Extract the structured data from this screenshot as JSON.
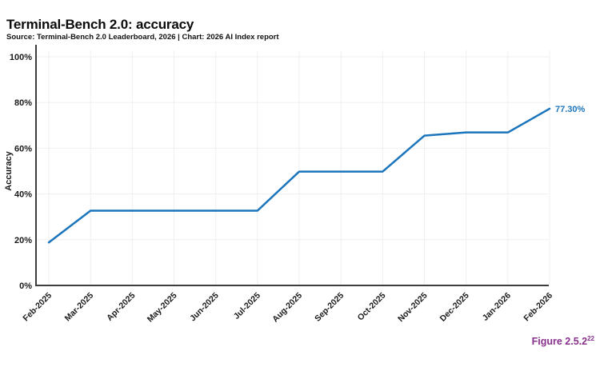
{
  "header": {
    "title": "Terminal-Bench 2.0: accuracy",
    "source_line": "Source: Terminal-Bench 2.0 Leaderboard, 2026 | Chart: 2026 AI Index report"
  },
  "chart_data": {
    "type": "line",
    "title": "Terminal-Bench 2.0: accuracy",
    "categories": [
      "Feb-2025",
      "Mar-2025",
      "Apr-2025",
      "May-2025",
      "Jun-2025",
      "Jul-2025",
      "Aug-2025",
      "Sep-2025",
      "Oct-2025",
      "Nov-2025",
      "Dec-2025",
      "Jan-2026",
      "Feb-2026"
    ],
    "series": [
      {
        "name": "Accuracy",
        "values": [
          18.8,
          32.7,
          32.7,
          32.7,
          32.7,
          32.7,
          49.8,
          49.8,
          49.8,
          65.5,
          66.9,
          66.9,
          77.3
        ]
      }
    ],
    "xlabel": "",
    "ylabel": "Accuracy",
    "ylim": [
      0,
      100
    ],
    "y_ticks": [
      {
        "value": 0,
        "label": "0%"
      },
      {
        "value": 20,
        "label": "20%"
      },
      {
        "value": 40,
        "label": "40%"
      },
      {
        "value": 60,
        "label": "60%"
      },
      {
        "value": 80,
        "label": "80%"
      },
      {
        "value": 100,
        "label": "100%"
      }
    ],
    "grid": true,
    "legend": "none",
    "end_label": "77.30%",
    "colors": {
      "line": "#1b75bc",
      "axis": "#3d3d3d",
      "grid": "#efefef",
      "tick_text": "#1a1a1a"
    }
  },
  "figure_label": {
    "text": "Figure 2.5.2",
    "superscript": "22",
    "color": "#87308c"
  }
}
